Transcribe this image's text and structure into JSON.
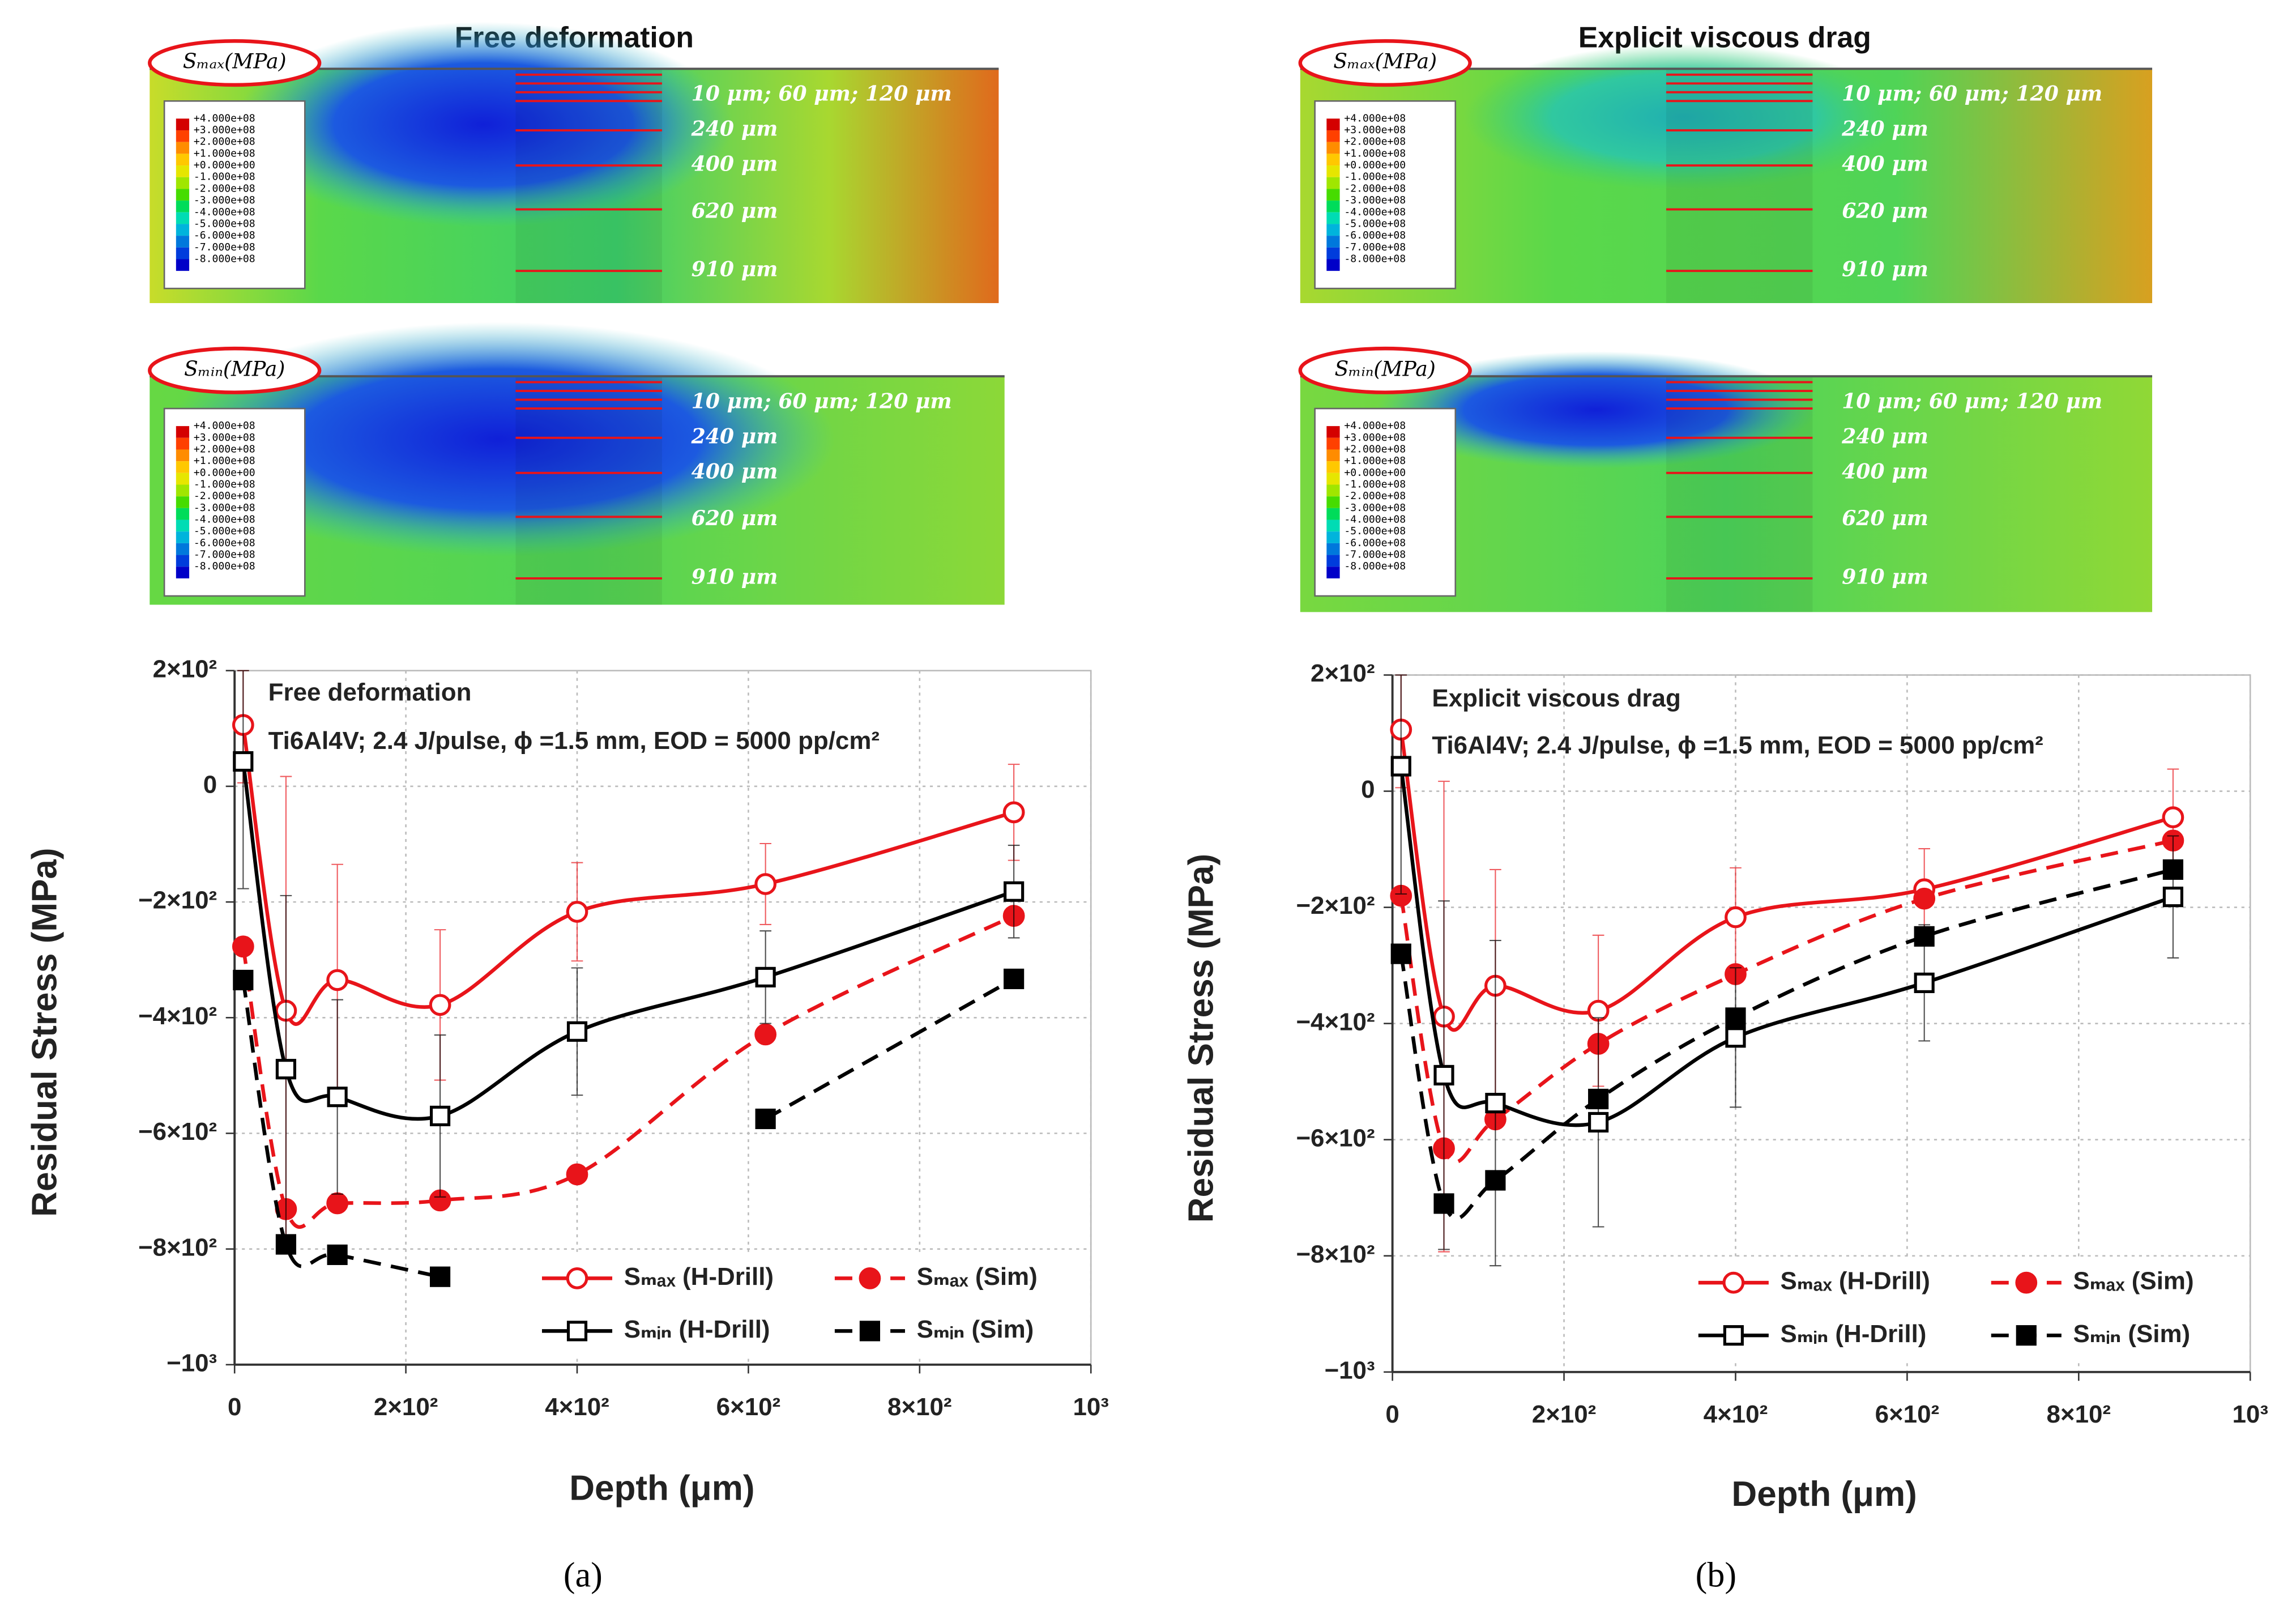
{
  "contour_maps": [
    {
      "title": "Free deformation",
      "maps": [
        {
          "label": "Sₘₐₓ(MPa)"
        },
        {
          "label": "Sₘᵢₙ(MPa)"
        }
      ]
    },
    {
      "title": "Explicit viscous drag",
      "maps": [
        {
          "label": "Sₘₐₓ(MPa)"
        },
        {
          "label": "Sₘᵢₙ(MPa)"
        }
      ]
    }
  ],
  "depth_labels": [
    "10 μm; 60 μm; 120 μm",
    "240 μm",
    "400 μm",
    "620 μm",
    "910 μm"
  ],
  "colorbar_labels": [
    "+4.000e+08",
    "+3.000e+08",
    "+2.000e+08",
    "+1.000e+08",
    "+0.000e+00",
    "-1.000e+08",
    "-2.000e+08",
    "-3.000e+08",
    "-4.000e+08",
    "-5.000e+08",
    "-6.000e+08",
    "-7.000e+08",
    "-8.000e+08"
  ],
  "chart_data": [
    {
      "type": "line",
      "caption": "(a)",
      "annotations": [
        "Free deformation",
        "Ti6Al4V; 2.4 J/pulse, ϕ =1.5 mm, EOD = 5000 pp/cm²"
      ],
      "x_label": "Depth (μm)",
      "y_label": "Residual Stress (MPa)",
      "grid": true,
      "x": [
        10,
        60,
        120,
        240,
        400,
        620,
        910
      ],
      "xlim": [
        0,
        1000
      ],
      "xticks": [
        0,
        {
          "value": 200,
          "label": "2×10²"
        },
        {
          "value": 400,
          "label": "4×10²"
        },
        {
          "value": 600,
          "label": "6×10²"
        },
        {
          "value": 800,
          "label": "8×10²"
        },
        {
          "value": 1000,
          "label": "10³"
        }
      ],
      "ylim": [
        -1000,
        200
      ],
      "yticks": [
        {
          "value": 200,
          "label": "2×10²"
        },
        0,
        {
          "value": -200,
          "label": "−2×10²"
        },
        {
          "value": -400,
          "label": "−4×10²"
        },
        {
          "value": -600,
          "label": "−6×10²"
        },
        {
          "value": -800,
          "label": "−8×10²"
        },
        {
          "value": -1000,
          "label": "−10³"
        }
      ],
      "series": [
        {
          "name": "Sₘₐₓ (H-Drill)",
          "color": "#e8141a",
          "marker": "open-circle",
          "dashed": false,
          "values": [
            106,
            -388,
            -335,
            -378,
            -217,
            -169,
            -45
          ],
          "errors": [
            100,
            405,
            200,
            130,
            85,
            70,
            83
          ]
        },
        {
          "name": "Sₘₐₓ (Sim)",
          "color": "#e8141a",
          "marker": "filled-circle",
          "dashed": true,
          "values": [
            -277,
            -731,
            -721,
            -716,
            -671,
            -429,
            -224
          ]
        },
        {
          "name": "Sₘᵢₙ (H-Drill)",
          "color": "#000000",
          "marker": "open-square",
          "dashed": false,
          "values": [
            43,
            -489,
            -537,
            -570,
            -424,
            -330,
            -182
          ],
          "errors": [
            220,
            300,
            168,
            140,
            110,
            80,
            80
          ]
        },
        {
          "name": "Sₘᵢₙ (Sim)",
          "color": "#000000",
          "marker": "filled-square",
          "dashed": true,
          "values": [
            -335,
            -792,
            -810,
            -848,
            null,
            -575,
            -333
          ]
        }
      ]
    },
    {
      "type": "line",
      "caption": "(b)",
      "annotations": [
        "Explicit viscous drag",
        "Ti6Al4V; 2.4 J/pulse, ϕ =1.5 mm, EOD = 5000 pp/cm²"
      ],
      "x_label": "Depth (μm)",
      "y_label": "Residual Stress (MPa)",
      "grid": true,
      "x": [
        10,
        60,
        120,
        240,
        400,
        620,
        910
      ],
      "xlim": [
        0,
        1000
      ],
      "xticks": [
        0,
        {
          "value": 200,
          "label": "2×10²"
        },
        {
          "value": 400,
          "label": "4×10²"
        },
        {
          "value": 600,
          "label": "6×10²"
        },
        {
          "value": 800,
          "label": "8×10²"
        },
        {
          "value": 1000,
          "label": "10³"
        }
      ],
      "ylim": [
        -1000,
        200
      ],
      "yticks": [
        {
          "value": 200,
          "label": "2×10²"
        },
        0,
        {
          "value": -200,
          "label": "−2×10²"
        },
        {
          "value": -400,
          "label": "−4×10²"
        },
        {
          "value": -600,
          "label": "−6×10²"
        },
        {
          "value": -800,
          "label": "−8×10²"
        },
        {
          "value": -1000,
          "label": "−10³"
        }
      ],
      "series": [
        {
          "name": "Sₘₐₓ (H-Drill)",
          "color": "#e8141a",
          "marker": "open-circle",
          "dashed": false,
          "values": [
            106,
            -388,
            -335,
            -378,
            -217,
            -169,
            -45
          ],
          "errors": [
            100,
            405,
            200,
            130,
            85,
            70,
            83
          ]
        },
        {
          "name": "Sₘₐₓ (Sim)",
          "color": "#e8141a",
          "marker": "filled-circle",
          "dashed": true,
          "values": [
            -180,
            -615,
            -565,
            -435,
            -315,
            -185,
            -85
          ]
        },
        {
          "name": "Sₘᵢₙ (H-Drill)",
          "color": "#000000",
          "marker": "open-square",
          "dashed": false,
          "values": [
            43,
            -489,
            -537,
            -570,
            -424,
            -330,
            -182
          ],
          "errors": [
            220,
            300,
            280,
            180,
            120,
            100,
            105
          ]
        },
        {
          "name": "Sₘᵢₙ (Sim)",
          "color": "#000000",
          "marker": "filled-square",
          "dashed": true,
          "values": [
            -280,
            -710,
            -670,
            -530,
            -390,
            -250,
            -135
          ]
        }
      ]
    }
  ]
}
